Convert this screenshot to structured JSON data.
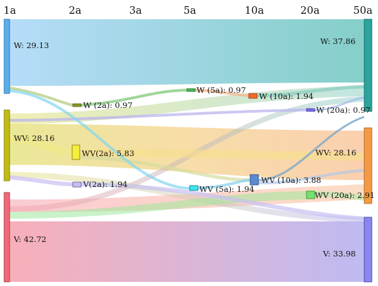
{
  "periods": [
    "1a",
    "2a",
    "3a",
    "5a",
    "10a",
    "20a",
    "50a"
  ],
  "nodes": {
    "w_1a": {
      "label": "W: 29.13",
      "color": "#5aaeea"
    },
    "wv_1a": {
      "label": "WV: 28.16",
      "color": "#c8c21e"
    },
    "v_1a": {
      "label": "V: 42.72",
      "color": "#f06a7a"
    },
    "w_2a": {
      "label": "W (2a): 0.97",
      "color": "#8a9a28"
    },
    "wv_2a": {
      "label": "WV(2a): 5.83",
      "color": "#f2ec42"
    },
    "v_2a": {
      "label": "V(2a): 1.94",
      "color": "#c8bff0"
    },
    "w_5a": {
      "label": "W (5a): 0.97",
      "color": "#48bb56"
    },
    "wv_5a": {
      "label": "WV (5a): 1.94",
      "color": "#3de6f0"
    },
    "w_10a": {
      "label": "W (10a): 1.94",
      "color": "#f06a2a"
    },
    "wv_10a": {
      "label": "WV (10a): 3.88",
      "color": "#5a8ad0"
    },
    "w_20a": {
      "label": "W (20a): 0.97",
      "color": "#7a70e0"
    },
    "wv_20a": {
      "label": "WV (20a): 2.91",
      "color": "#78e070"
    },
    "w_50a": {
      "label": "W: 37.86",
      "color": "#2aa49c"
    },
    "wv_50a": {
      "label": "WV: 28.16",
      "color": "#f59a44"
    },
    "v_50a": {
      "label": "V: 33.98",
      "color": "#8b86ee"
    }
  },
  "colors": {
    "w_big": [
      "#a8d8f8",
      "#6ec8c0"
    ],
    "wv_big": [
      "#e9e57a",
      "#f8c89a"
    ],
    "v_big": [
      "#f7a2ae",
      "#b4b0f4"
    ]
  }
}
